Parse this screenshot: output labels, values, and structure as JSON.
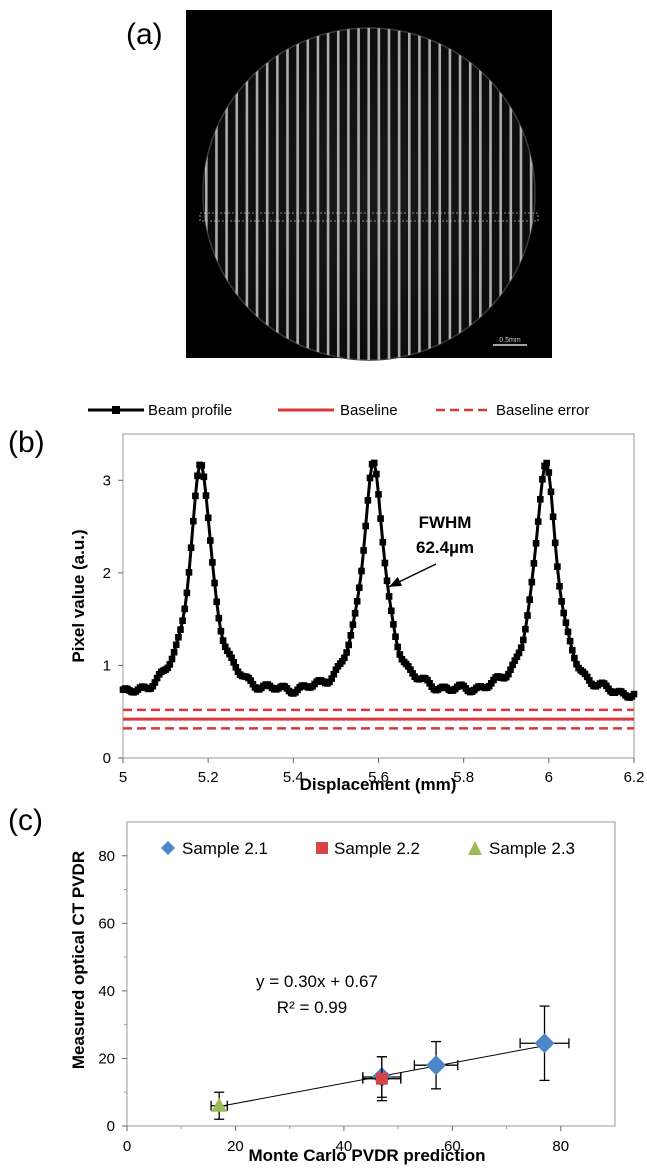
{
  "panels": {
    "a": {
      "label": "(a)",
      "scale_bar_text": "0.5mm"
    },
    "b": {
      "label": "(b)"
    },
    "c": {
      "label": "(c)"
    }
  },
  "colors": {
    "profile": "#000000",
    "baseline": "#d9393a",
    "sample21": "#4a86c8",
    "sample22": "#d64545",
    "sample23": "#9bbb59"
  },
  "chart_data": [
    {
      "type": "line",
      "xlabel": "Displacement (mm)",
      "ylabel": "Pixel value (a.u.)",
      "xlim": [
        5,
        6.2
      ],
      "ylim": [
        0,
        3.5
      ],
      "xticks": [
        5,
        5.2,
        5.4,
        5.6,
        5.8,
        6,
        6.2
      ],
      "xtick_labels": [
        "5",
        "5.2",
        "5.4",
        "5.6",
        "5.8",
        "6",
        "6.2"
      ],
      "yticks": [
        0,
        1,
        2,
        3
      ],
      "ytick_labels": [
        "0",
        "1",
        "2",
        "3"
      ],
      "legend_position": "top",
      "series": [
        {
          "name": "Beam profile",
          "style": "line-markers",
          "peaks": [
            {
              "center": 5.183,
              "height": 3.15
            },
            {
              "center": 5.588,
              "height": 3.15
            },
            {
              "center": 5.993,
              "height": 3.18
            }
          ],
          "fwhm_mm": 0.0624,
          "baseline_level": 0.62
        },
        {
          "name": "Baseline",
          "style": "solid",
          "y": 0.42
        },
        {
          "name": "Baseline error",
          "style": "dashed",
          "y": [
            0.32,
            0.52
          ]
        }
      ],
      "annotation": {
        "line1": "FWHM",
        "line2": "62.4µm",
        "target": [
          5.625,
          1.85
        ]
      }
    },
    {
      "type": "scatter",
      "xlabel": "Monte Carlo PVDR prediction",
      "ylabel": "Measured optical CT PVDR",
      "xlim": [
        0,
        90
      ],
      "ylim": [
        0,
        90
      ],
      "xticks": [
        0,
        20,
        40,
        60,
        80
      ],
      "xtick_labels": [
        "0",
        "20",
        "40",
        "60",
        "80"
      ],
      "yticks": [
        0,
        20,
        40,
        60,
        80
      ],
      "ytick_labels": [
        "0",
        "20",
        "40",
        "60",
        "80"
      ],
      "legend_position": "top",
      "series": [
        {
          "name": "Sample 2.1",
          "marker": "diamond",
          "points": [
            {
              "x": 47,
              "y": 14.5,
              "xerr": 3.5,
              "yerr": 6
            },
            {
              "x": 57,
              "y": 18,
              "xerr": 4,
              "yerr": 7
            },
            {
              "x": 77,
              "y": 24.5,
              "xerr": 4.5,
              "yerr": 11
            }
          ]
        },
        {
          "name": "Sample 2.2",
          "marker": "square",
          "points": [
            {
              "x": 47,
              "y": 14,
              "xerr": 3.5,
              "yerr": 6.5
            }
          ]
        },
        {
          "name": "Sample 2.3",
          "marker": "triangle",
          "points": [
            {
              "x": 17,
              "y": 6,
              "xerr": 1.5,
              "yerr": 4
            }
          ]
        }
      ],
      "fit": {
        "slope": 0.3,
        "intercept": 0.67,
        "x_range": [
          17,
          77
        ],
        "equation": "y = 0.30x + 0.67",
        "r2": "R² = 0.99"
      }
    }
  ]
}
